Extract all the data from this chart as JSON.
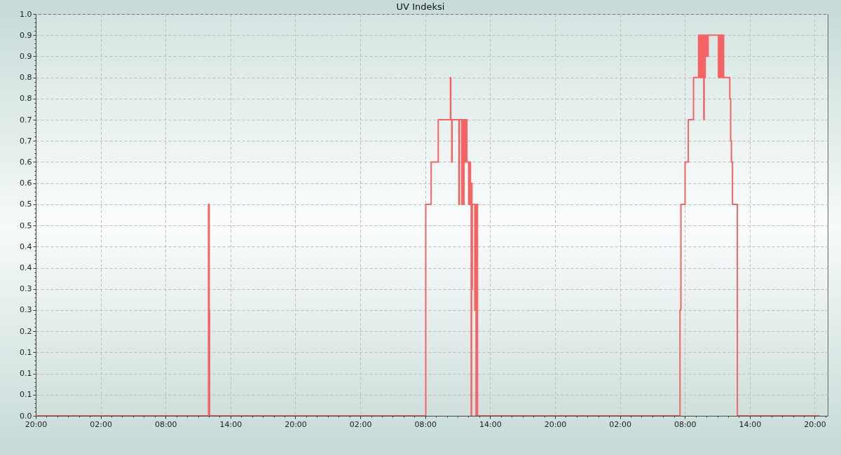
{
  "chart_data": {
    "type": "step",
    "title": "UV Indeksi",
    "x": [
      "--01-01T20:00",
      "--01-02T11:58",
      "--01-02T12:02",
      "--01-02T12:04",
      "--01-03T08:03",
      "--01-03T08:33",
      "--01-03T09:12",
      "--01-03T10:20",
      "--01-03T10:22",
      "--01-03T10:27",
      "--01-03T10:29",
      "--01-03T11:07",
      "--01-03T11:10",
      "--01-03T11:23",
      "--01-03T11:25",
      "--01-03T11:28",
      "--01-03T11:30",
      "--01-03T11:33",
      "--01-03T11:35",
      "--01-03T11:38",
      "--01-03T11:40",
      "--01-03T11:43",
      "--01-03T11:45",
      "--01-03T11:48",
      "--01-03T11:50",
      "--01-03T11:51",
      "--01-03T12:01",
      "--01-03T12:03",
      "--01-03T12:06",
      "--01-03T12:08",
      "--01-03T12:11",
      "--01-03T12:15",
      "--01-03T12:17",
      "--01-03T12:19",
      "--01-03T12:21",
      "--01-03T12:35",
      "--01-03T12:38",
      "--01-03T12:42",
      "--01-03T12:45",
      "--01-03T12:50",
      "--01-04T07:33",
      "--01-04T07:38",
      "--01-04T08:01",
      "--01-04T08:19",
      "--01-04T08:48",
      "--01-04T09:16",
      "--01-04T09:19",
      "--01-04T09:22",
      "--01-04T09:25",
      "--01-04T09:28",
      "--01-04T09:31",
      "--01-04T09:34",
      "--01-04T09:37",
      "--01-04T09:40",
      "--01-04T09:45",
      "--01-04T09:47",
      "--01-04T09:50",
      "--01-04T09:53",
      "--01-04T09:56",
      "--01-04T09:59",
      "--01-04T10:02",
      "--01-04T10:05",
      "--01-04T10:07",
      "--01-04T10:09",
      "--01-04T11:06",
      "--01-04T11:09",
      "--01-04T11:16",
      "--01-04T11:20",
      "--01-04T11:27",
      "--01-04T11:29",
      "--01-04T11:31",
      "--01-04T11:33",
      "--01-04T11:35",
      "--01-04T12:09",
      "--01-04T12:14",
      "--01-04T12:18",
      "--01-04T12:24",
      "--01-04T12:51",
      "--01-04T20:27"
    ],
    "series": [
      {
        "color": "#f46464",
        "values": [
          0,
          0.5,
          0.25,
          0,
          0.5,
          0.6,
          0.7,
          0.8,
          0.7,
          0.6,
          0.7,
          0.5,
          0.7,
          0.5,
          0.7,
          0.6,
          0.7,
          0.5,
          0.7,
          0.6,
          0.7,
          0.6,
          0.7,
          0.6,
          0.7,
          0.6,
          0.5,
          0.6,
          0.5,
          0.6,
          0.5,
          0,
          0.55,
          0.3,
          0.5,
          0.25,
          0.5,
          0,
          0.5,
          0,
          0.25,
          0.5,
          0.6,
          0.7,
          0.8,
          0.9,
          0.8,
          0.9,
          0.8,
          0.9,
          0.8,
          0.9,
          0.8,
          0.9,
          0.7,
          0.9,
          0.8,
          0.9,
          0.85,
          0.9,
          0.85,
          0.9,
          0.85,
          0.9,
          0.8,
          0.9,
          0.8,
          0.9,
          0.8,
          0.9,
          0.8,
          0.9,
          0.8,
          0.75,
          0.65,
          0.6,
          0.5,
          0,
          0
        ]
      }
    ],
    "xlim": [
      "--01-01T20:00",
      "--01-04T21:12"
    ],
    "xticks": [
      {
        "value": "--01-01T20:00",
        "label": "20:00"
      },
      {
        "value": "--01-01T21:00",
        "label": null
      },
      {
        "value": "--01-01T22:00",
        "label": null
      },
      {
        "value": "--01-01T23:00",
        "label": null
      },
      {
        "value": "--01-02T00:00",
        "label": null
      },
      {
        "value": "--01-02T01:00",
        "label": null
      },
      {
        "value": "--01-02T02:00",
        "label": "02:00"
      },
      {
        "value": "--01-02T03:00",
        "label": null
      },
      {
        "value": "--01-02T04:00",
        "label": null
      },
      {
        "value": "--01-02T05:00",
        "label": null
      },
      {
        "value": "--01-02T06:00",
        "label": null
      },
      {
        "value": "--01-02T07:00",
        "label": null
      },
      {
        "value": "--01-02T08:00",
        "label": "08:00"
      },
      {
        "value": "--01-02T09:00",
        "label": null
      },
      {
        "value": "--01-02T10:00",
        "label": null
      },
      {
        "value": "--01-02T11:00",
        "label": null
      },
      {
        "value": "--01-02T12:00",
        "label": null
      },
      {
        "value": "--01-02T13:00",
        "label": null
      },
      {
        "value": "--01-02T14:00",
        "label": "14:00"
      },
      {
        "value": "--01-02T15:00",
        "label": null
      },
      {
        "value": "--01-02T16:00",
        "label": null
      },
      {
        "value": "--01-02T17:00",
        "label": null
      },
      {
        "value": "--01-02T18:00",
        "label": null
      },
      {
        "value": "--01-02T19:00",
        "label": null
      },
      {
        "value": "--01-02T20:00",
        "label": "20:00"
      },
      {
        "value": "--01-02T21:00",
        "label": null
      },
      {
        "value": "--01-02T22:00",
        "label": null
      },
      {
        "value": "--01-02T23:00",
        "label": null
      },
      {
        "value": "--01-03T00:00",
        "label": null
      },
      {
        "value": "--01-03T01:00",
        "label": null
      },
      {
        "value": "--01-03T02:00",
        "label": "02:00"
      },
      {
        "value": "--01-03T03:00",
        "label": null
      },
      {
        "value": "--01-03T04:00",
        "label": null
      },
      {
        "value": "--01-03T05:00",
        "label": null
      },
      {
        "value": "--01-03T06:00",
        "label": null
      },
      {
        "value": "--01-03T07:00",
        "label": null
      },
      {
        "value": "--01-03T08:00",
        "label": "08:00"
      },
      {
        "value": "--01-03T09:00",
        "label": null
      },
      {
        "value": "--01-03T10:00",
        "label": null
      },
      {
        "value": "--01-03T11:00",
        "label": null
      },
      {
        "value": "--01-03T12:00",
        "label": null
      },
      {
        "value": "--01-03T13:00",
        "label": null
      },
      {
        "value": "--01-03T14:00",
        "label": "14:00"
      },
      {
        "value": "--01-03T15:00",
        "label": null
      },
      {
        "value": "--01-03T16:00",
        "label": null
      },
      {
        "value": "--01-03T17:00",
        "label": null
      },
      {
        "value": "--01-03T18:00",
        "label": null
      },
      {
        "value": "--01-03T19:00",
        "label": null
      },
      {
        "value": "--01-03T20:00",
        "label": "20:00"
      },
      {
        "value": "--01-03T21:00",
        "label": null
      },
      {
        "value": "--01-03T22:00",
        "label": null
      },
      {
        "value": "--01-03T23:00",
        "label": null
      },
      {
        "value": "--01-04T00:00",
        "label": null
      },
      {
        "value": "--01-04T01:00",
        "label": null
      },
      {
        "value": "--01-04T02:00",
        "label": "02:00"
      },
      {
        "value": "--01-04T03:00",
        "label": null
      },
      {
        "value": "--01-04T04:00",
        "label": null
      },
      {
        "value": "--01-04T05:00",
        "label": null
      },
      {
        "value": "--01-04T06:00",
        "label": null
      },
      {
        "value": "--01-04T07:00",
        "label": null
      },
      {
        "value": "--01-04T08:00",
        "label": "08:00"
      },
      {
        "value": "--01-04T09:00",
        "label": null
      },
      {
        "value": "--01-04T10:00",
        "label": null
      },
      {
        "value": "--01-04T11:00",
        "label": null
      },
      {
        "value": "--01-04T12:00",
        "label": null
      },
      {
        "value": "--01-04T13:00",
        "label": null
      },
      {
        "value": "--01-04T14:00",
        "label": "14:00"
      },
      {
        "value": "--01-04T15:00",
        "label": null
      },
      {
        "value": "--01-04T16:00",
        "label": null
      },
      {
        "value": "--01-04T17:00",
        "label": null
      },
      {
        "value": "--01-04T18:00",
        "label": null
      },
      {
        "value": "--01-04T19:00",
        "label": null
      },
      {
        "value": "--01-04T20:00",
        "label": "20:00"
      },
      {
        "value": "--01-04T21:00",
        "label": null
      }
    ],
    "ylim": [
      0,
      0.95
    ],
    "yticks": [
      {
        "value": 0,
        "label": "0.0"
      },
      {
        "value": 0.01,
        "label": null
      },
      {
        "value": 0.02,
        "label": null
      },
      {
        "value": 0.03,
        "label": null
      },
      {
        "value": 0.04,
        "label": null
      },
      {
        "value": 0.05,
        "label": "0.1"
      },
      {
        "value": 0.06,
        "label": null
      },
      {
        "value": 0.07,
        "label": null
      },
      {
        "value": 0.08,
        "label": null
      },
      {
        "value": 0.09,
        "label": null
      },
      {
        "value": 0.1,
        "label": "0.1"
      },
      {
        "value": 0.11,
        "label": null
      },
      {
        "value": 0.12,
        "label": null
      },
      {
        "value": 0.13,
        "label": null
      },
      {
        "value": 0.14,
        "label": null
      },
      {
        "value": 0.15,
        "label": "0.1"
      },
      {
        "value": 0.16,
        "label": null
      },
      {
        "value": 0.17,
        "label": null
      },
      {
        "value": 0.18,
        "label": null
      },
      {
        "value": 0.19,
        "label": null
      },
      {
        "value": 0.2,
        "label": "0.2"
      },
      {
        "value": 0.21,
        "label": null
      },
      {
        "value": 0.22,
        "label": null
      },
      {
        "value": 0.23,
        "label": null
      },
      {
        "value": 0.24,
        "label": null
      },
      {
        "value": 0.25,
        "label": "0.3"
      },
      {
        "value": 0.26,
        "label": null
      },
      {
        "value": 0.27,
        "label": null
      },
      {
        "value": 0.28,
        "label": null
      },
      {
        "value": 0.29,
        "label": null
      },
      {
        "value": 0.3,
        "label": "0.3"
      },
      {
        "value": 0.31,
        "label": null
      },
      {
        "value": 0.32,
        "label": null
      },
      {
        "value": 0.33,
        "label": null
      },
      {
        "value": 0.34,
        "label": null
      },
      {
        "value": 0.35,
        "label": "0.4"
      },
      {
        "value": 0.36,
        "label": null
      },
      {
        "value": 0.37,
        "label": null
      },
      {
        "value": 0.38,
        "label": null
      },
      {
        "value": 0.39,
        "label": null
      },
      {
        "value": 0.4,
        "label": "0.4"
      },
      {
        "value": 0.41,
        "label": null
      },
      {
        "value": 0.42,
        "label": null
      },
      {
        "value": 0.43,
        "label": null
      },
      {
        "value": 0.44,
        "label": null
      },
      {
        "value": 0.45,
        "label": "0.5"
      },
      {
        "value": 0.46,
        "label": null
      },
      {
        "value": 0.47,
        "label": null
      },
      {
        "value": 0.48,
        "label": null
      },
      {
        "value": 0.49,
        "label": null
      },
      {
        "value": 0.5,
        "label": "0.5"
      },
      {
        "value": 0.51,
        "label": null
      },
      {
        "value": 0.52,
        "label": null
      },
      {
        "value": 0.53,
        "label": null
      },
      {
        "value": 0.54,
        "label": null
      },
      {
        "value": 0.55,
        "label": "0.6"
      },
      {
        "value": 0.56,
        "label": null
      },
      {
        "value": 0.57,
        "label": null
      },
      {
        "value": 0.58,
        "label": null
      },
      {
        "value": 0.59,
        "label": null
      },
      {
        "value": 0.6,
        "label": "0.6"
      },
      {
        "value": 0.61,
        "label": null
      },
      {
        "value": 0.62,
        "label": null
      },
      {
        "value": 0.63,
        "label": null
      },
      {
        "value": 0.64,
        "label": null
      },
      {
        "value": 0.65,
        "label": "0.7"
      },
      {
        "value": 0.66,
        "label": null
      },
      {
        "value": 0.67,
        "label": null
      },
      {
        "value": 0.68,
        "label": null
      },
      {
        "value": 0.69,
        "label": null
      },
      {
        "value": 0.7,
        "label": "0.7"
      },
      {
        "value": 0.71,
        "label": null
      },
      {
        "value": 0.72,
        "label": null
      },
      {
        "value": 0.73,
        "label": null
      },
      {
        "value": 0.74,
        "label": null
      },
      {
        "value": 0.75,
        "label": "0.8"
      },
      {
        "value": 0.76,
        "label": null
      },
      {
        "value": 0.77,
        "label": null
      },
      {
        "value": 0.78,
        "label": null
      },
      {
        "value": 0.79,
        "label": null
      },
      {
        "value": 0.8,
        "label": "0.8"
      },
      {
        "value": 0.81,
        "label": null
      },
      {
        "value": 0.82,
        "label": null
      },
      {
        "value": 0.83,
        "label": null
      },
      {
        "value": 0.84,
        "label": null
      },
      {
        "value": 0.85,
        "label": "0.9"
      },
      {
        "value": 0.86,
        "label": null
      },
      {
        "value": 0.87,
        "label": null
      },
      {
        "value": 0.88,
        "label": null
      },
      {
        "value": 0.89,
        "label": null
      },
      {
        "value": 0.9,
        "label": "0.9"
      },
      {
        "value": 0.91,
        "label": null
      },
      {
        "value": 0.92,
        "label": null
      },
      {
        "value": 0.93,
        "label": null
      },
      {
        "value": 0.94,
        "label": null
      },
      {
        "value": 0.95,
        "label": "1.0"
      }
    ],
    "grid": true
  }
}
